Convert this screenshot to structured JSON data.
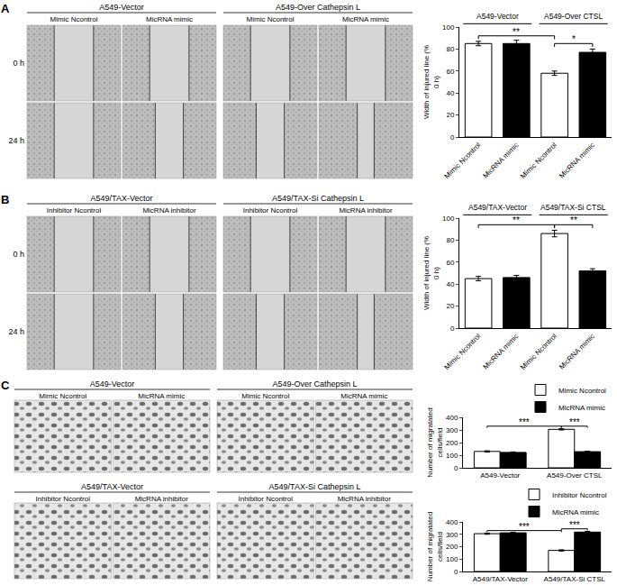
{
  "panels": [
    {
      "label": "A",
      "image_blocks": [
        {
          "groups": [
            {
              "title": "A549-Vector",
              "columns": [
                "Mimic Ncontrol",
                "MicRNA mimic"
              ]
            },
            {
              "title": "A549-Over Cathepsin L",
              "columns": [
                "Mimic Ncontrol",
                "MicRNA mimic"
              ]
            }
          ],
          "rows": [
            "0 h",
            "24 h"
          ]
        }
      ]
    },
    {
      "label": "B",
      "image_blocks": [
        {
          "groups": [
            {
              "title": "A549/TAX-Vector",
              "columns": [
                "Inhibitor Ncontrol",
                "MicRNA inhibitor"
              ]
            },
            {
              "title": "A549/TAX-Si Cathepsin L",
              "columns": [
                "Inhibitor Ncontrol",
                "MicRNA inhibitor"
              ]
            }
          ],
          "rows": [
            "0 h",
            "24 h"
          ]
        }
      ]
    },
    {
      "label": "C",
      "image_blocks": [
        {
          "groups": [
            {
              "title": "A549-Vector",
              "columns": [
                "Mimic Ncontrol",
                "MicRNA mimic"
              ]
            },
            {
              "title": "A549-Over Cathepsin L",
              "columns": [
                "Mimic Ncontrol",
                "MicRNA mimic"
              ]
            }
          ]
        },
        {
          "groups": [
            {
              "title": "A549/TAX-Vector",
              "columns": [
                "Inhibitor Ncontrol",
                "MicRNA inhibitor"
              ]
            },
            {
              "title": "A549/TAX-Si Cathepsin L",
              "columns": [
                "Inhibitor Ncontrol",
                "MicRNA inhibitor"
              ]
            }
          ]
        }
      ]
    }
  ],
  "chart_data": [
    {
      "type": "bar",
      "ylabel": "Width of injured line (% 0 h)",
      "categories": [
        "Mimic Ncontrol",
        "MicRNA mimic",
        "Mimic Ncontrol",
        "MicRNA mimic"
      ],
      "values": [
        85,
        85,
        58,
        77
      ],
      "errors": [
        2,
        3,
        2,
        3
      ],
      "colors": [
        "#ffffff",
        "#000000",
        "#ffffff",
        "#000000"
      ],
      "ylim": [
        0,
        100
      ],
      "yticks": [
        0,
        20,
        40,
        60,
        80,
        100
      ],
      "group_labels": [
        {
          "label": "A549-Vector",
          "from": 0,
          "to": 1
        },
        {
          "label": "A549-Over CTSL",
          "from": 2,
          "to": 3
        }
      ],
      "significance": [
        {
          "from": 0,
          "to": 2,
          "label": "**"
        },
        {
          "from": 2,
          "to": 3,
          "label": "*"
        }
      ]
    },
    {
      "type": "bar",
      "ylabel": "Width of injured line (% 0 h)",
      "categories": [
        "Mimic Ncontrol",
        "MicRNA mimic",
        "Mimic Ncontrol",
        "MicRNA mimic"
      ],
      "values": [
        45,
        46,
        86,
        52
      ],
      "errors": [
        2,
        2,
        3,
        2
      ],
      "colors": [
        "#ffffff",
        "#000000",
        "#ffffff",
        "#000000"
      ],
      "ylim": [
        0,
        100
      ],
      "yticks": [
        0,
        20,
        40,
        60,
        80,
        100
      ],
      "group_labels": [
        {
          "label": "A549/TAX-Vector",
          "from": 0,
          "to": 1
        },
        {
          "label": "A549/TAX-Si CTSL",
          "from": 2,
          "to": 3
        }
      ],
      "significance": [
        {
          "from": 0,
          "to": 2,
          "label": "**"
        },
        {
          "from": 2,
          "to": 3,
          "label": "**"
        }
      ]
    },
    {
      "type": "bar",
      "ylabel": "Number of migratated cells/field",
      "categories": [
        "A549-Vector",
        "A549-Over CTSL"
      ],
      "series": [
        {
          "name": "Mimic Ncontrol",
          "color": "#ffffff",
          "values": [
            130,
            305
          ],
          "errors": [
            5,
            5
          ]
        },
        {
          "name": "MicRNA mimic",
          "color": "#000000",
          "values": [
            122,
            128
          ],
          "errors": [
            4,
            4
          ]
        }
      ],
      "ylim": [
        0,
        400
      ],
      "yticks": [
        0,
        100,
        200,
        300,
        400
      ],
      "legend": "top right",
      "significance": [
        {
          "from": [
            0,
            0
          ],
          "to": [
            1,
            0
          ],
          "label": "***"
        },
        {
          "from": [
            1,
            0
          ],
          "to": [
            1,
            1
          ],
          "label": "***"
        }
      ]
    },
    {
      "type": "bar",
      "ylabel": "Number of migratated cells/field",
      "categories": [
        "A549/TAX-Vector",
        "A549/TAX-Si CTSL"
      ],
      "series": [
        {
          "name": "Inhibitor Ncontrol",
          "color": "#ffffff",
          "values": [
            305,
            170
          ],
          "errors": [
            5,
            5
          ]
        },
        {
          "name": "MicRNA mimic",
          "color": "#000000",
          "values": [
            312,
            318
          ],
          "errors": [
            5,
            6
          ]
        }
      ],
      "ylim": [
        0,
        400
      ],
      "yticks": [
        0,
        100,
        200,
        300,
        400
      ],
      "legend": "top right",
      "significance": [
        {
          "from": [
            0,
            0
          ],
          "to": [
            1,
            0
          ],
          "label": "***"
        },
        {
          "from": [
            1,
            0
          ],
          "to": [
            1,
            1
          ],
          "label": "***"
        }
      ]
    }
  ]
}
